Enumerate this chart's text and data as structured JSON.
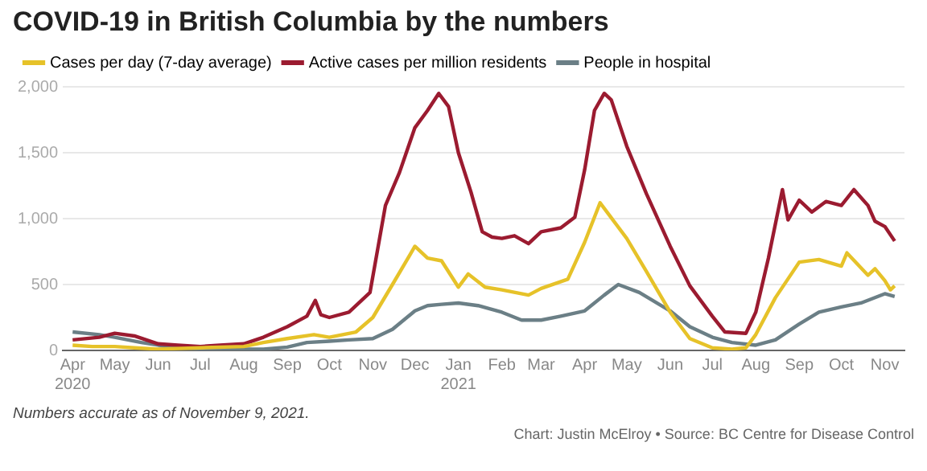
{
  "chart_data": {
    "type": "line",
    "title": "COVID-19 in British Columbia by the numbers",
    "xlim": [
      "2020-03-25",
      "2021-11-15"
    ],
    "xticks": [
      {
        "value": "2020-04-01",
        "label": "Apr\n2020"
      },
      {
        "value": "2020-05-01",
        "label": "May"
      },
      {
        "value": "2020-06-01",
        "label": "Jun"
      },
      {
        "value": "2020-07-01",
        "label": "Jul"
      },
      {
        "value": "2020-08-01",
        "label": "Aug"
      },
      {
        "value": "2020-09-01",
        "label": "Sep"
      },
      {
        "value": "2020-10-01",
        "label": "Oct"
      },
      {
        "value": "2020-11-01",
        "label": "Nov"
      },
      {
        "value": "2020-12-01",
        "label": "Dec"
      },
      {
        "value": "2021-01-01",
        "label": "Jan\n2021"
      },
      {
        "value": "2021-02-01",
        "label": "Feb"
      },
      {
        "value": "2021-03-01",
        "label": "Mar"
      },
      {
        "value": "2021-04-01",
        "label": "Apr"
      },
      {
        "value": "2021-05-01",
        "label": "May"
      },
      {
        "value": "2021-06-01",
        "label": "Jun"
      },
      {
        "value": "2021-07-01",
        "label": "Jul"
      },
      {
        "value": "2021-08-01",
        "label": "Aug"
      },
      {
        "value": "2021-09-01",
        "label": "Sep"
      },
      {
        "value": "2021-10-01",
        "label": "Oct"
      },
      {
        "value": "2021-11-01",
        "label": "Nov"
      }
    ],
    "ylim": [
      0,
      2000
    ],
    "yticks": [
      {
        "value": 0,
        "label": "0"
      },
      {
        "value": 500,
        "label": "500"
      },
      {
        "value": 1000,
        "label": "1,000"
      },
      {
        "value": 1500,
        "label": "1,500"
      },
      {
        "value": 2000,
        "label": "2,000"
      }
    ],
    "grid": "y",
    "legend": "top left",
    "marker": "none",
    "line_style": "solid",
    "annotations": [
      "Numbers accurate as of  November 9, 2021.",
      "Chart: Justin McElroy • Source: BC Centre for Disease Control"
    ],
    "series": [
      {
        "name": "Cases per day (7-day average)",
        "color": "#e6c229",
        "x": [
          "2020-04-01",
          "2020-04-15",
          "2020-05-01",
          "2020-05-15",
          "2020-06-01",
          "2020-07-01",
          "2020-08-01",
          "2020-08-15",
          "2020-09-01",
          "2020-09-20",
          "2020-10-01",
          "2020-10-20",
          "2020-11-01",
          "2020-11-15",
          "2020-11-25",
          "2020-12-01",
          "2020-12-10",
          "2020-12-20",
          "2021-01-01",
          "2021-01-08",
          "2021-01-20",
          "2021-02-01",
          "2021-02-20",
          "2021-03-01",
          "2021-03-20",
          "2021-04-01",
          "2021-04-12",
          "2021-05-01",
          "2021-05-15",
          "2021-06-01",
          "2021-06-15",
          "2021-07-01",
          "2021-07-15",
          "2021-07-25",
          "2021-08-01",
          "2021-08-15",
          "2021-09-01",
          "2021-09-15",
          "2021-10-01",
          "2021-10-05",
          "2021-10-20",
          "2021-10-25",
          "2021-11-01",
          "2021-11-05",
          "2021-11-08"
        ],
        "values": [
          40,
          30,
          30,
          20,
          10,
          20,
          30,
          60,
          90,
          120,
          100,
          140,
          250,
          500,
          680,
          790,
          700,
          680,
          480,
          580,
          480,
          460,
          420,
          470,
          540,
          820,
          1120,
          850,
          600,
          290,
          90,
          20,
          10,
          20,
          120,
          400,
          670,
          690,
          640,
          740,
          570,
          620,
          530,
          460,
          490
        ]
      },
      {
        "name": "Active cases per million residents",
        "color": "#9b1b30",
        "x": [
          "2020-04-01",
          "2020-04-20",
          "2020-05-01",
          "2020-05-15",
          "2020-06-01",
          "2020-06-15",
          "2020-07-01",
          "2020-07-15",
          "2020-08-01",
          "2020-08-15",
          "2020-09-01",
          "2020-09-15",
          "2020-09-21",
          "2020-09-25",
          "2020-10-01",
          "2020-10-15",
          "2020-10-30",
          "2020-11-10",
          "2020-11-20",
          "2020-12-01",
          "2020-12-10",
          "2020-12-18",
          "2020-12-25",
          "2021-01-01",
          "2021-01-10",
          "2021-01-18",
          "2021-01-25",
          "2021-02-01",
          "2021-02-10",
          "2021-02-20",
          "2021-03-01",
          "2021-03-15",
          "2021-03-25",
          "2021-04-01",
          "2021-04-08",
          "2021-04-15",
          "2021-04-20",
          "2021-05-01",
          "2021-05-15",
          "2021-06-01",
          "2021-06-15",
          "2021-07-01",
          "2021-07-10",
          "2021-07-25",
          "2021-08-01",
          "2021-08-10",
          "2021-08-20",
          "2021-08-24",
          "2021-09-01",
          "2021-09-10",
          "2021-09-20",
          "2021-10-01",
          "2021-10-10",
          "2021-10-20",
          "2021-10-25",
          "2021-11-01",
          "2021-11-08"
        ],
        "values": [
          80,
          100,
          130,
          110,
          50,
          40,
          30,
          40,
          50,
          100,
          180,
          260,
          380,
          270,
          250,
          290,
          440,
          1100,
          1350,
          1690,
          1820,
          1950,
          1850,
          1500,
          1200,
          900,
          860,
          850,
          870,
          810,
          900,
          930,
          1010,
          1370,
          1820,
          1950,
          1900,
          1550,
          1190,
          790,
          490,
          260,
          140,
          130,
          290,
          700,
          1220,
          990,
          1140,
          1050,
          1130,
          1100,
          1220,
          1100,
          980,
          940,
          830
        ]
      },
      {
        "name": "People in hospital",
        "color": "#6b7f86",
        "x": [
          "2020-04-01",
          "2020-04-20",
          "2020-05-01",
          "2020-05-20",
          "2020-06-01",
          "2020-07-01",
          "2020-08-01",
          "2020-08-15",
          "2020-09-01",
          "2020-09-15",
          "2020-10-01",
          "2020-10-15",
          "2020-11-01",
          "2020-11-15",
          "2020-12-01",
          "2020-12-10",
          "2020-12-20",
          "2021-01-01",
          "2021-01-15",
          "2021-02-01",
          "2021-02-15",
          "2021-03-01",
          "2021-03-15",
          "2021-04-01",
          "2021-04-15",
          "2021-04-25",
          "2021-05-10",
          "2021-06-01",
          "2021-06-15",
          "2021-07-01",
          "2021-07-15",
          "2021-08-01",
          "2021-08-15",
          "2021-09-01",
          "2021-09-15",
          "2021-10-01",
          "2021-10-15",
          "2021-11-01",
          "2021-11-08"
        ],
        "values": [
          140,
          120,
          100,
          60,
          40,
          10,
          10,
          10,
          25,
          60,
          70,
          80,
          90,
          160,
          300,
          340,
          350,
          360,
          340,
          290,
          230,
          230,
          260,
          300,
          420,
          500,
          440,
          300,
          180,
          100,
          60,
          40,
          80,
          200,
          290,
          330,
          360,
          430,
          410
        ]
      }
    ]
  }
}
